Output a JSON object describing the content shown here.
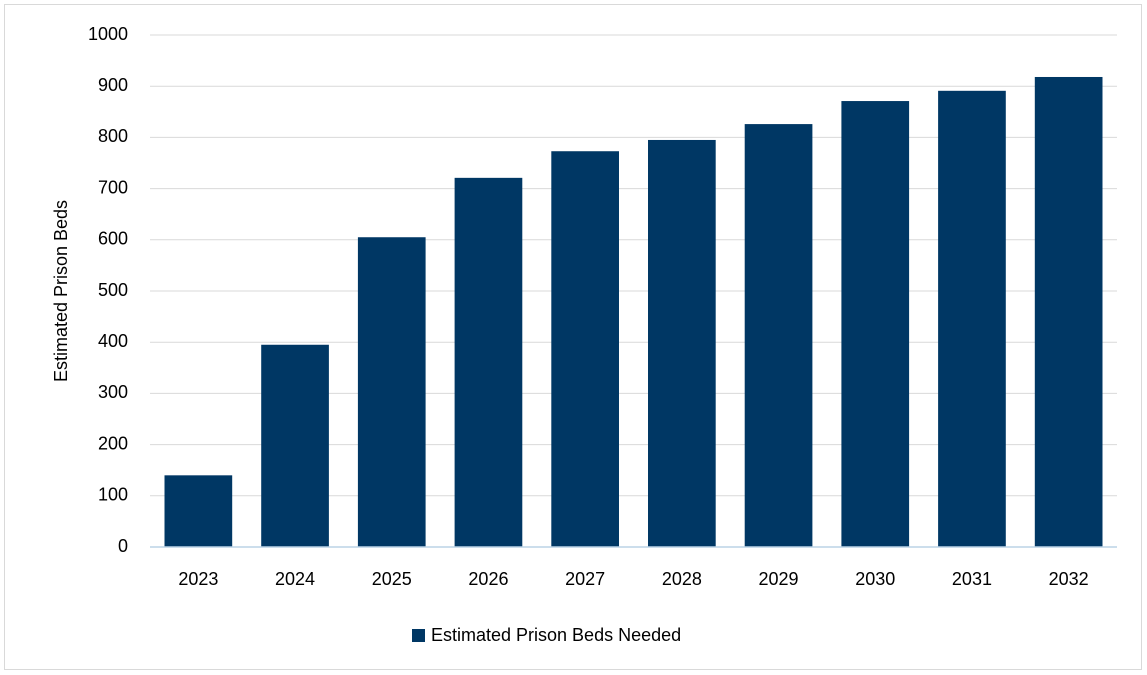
{
  "chart_data": {
    "type": "bar",
    "y_label": "Estimated Prison Beds",
    "categories": [
      "2023",
      "2024",
      "2025",
      "2026",
      "2027",
      "2028",
      "2029",
      "2030",
      "2031",
      "2032"
    ],
    "series": [
      {
        "name": "Estimated Prison Beds Needed",
        "color": "#003764",
        "values": [
          140,
          395,
          605,
          721,
          773,
          795,
          826,
          871,
          891,
          918
        ]
      }
    ],
    "ylim": [
      0,
      1000
    ],
    "yticks": [
      0,
      100,
      200,
      300,
      400,
      500,
      600,
      700,
      800,
      900,
      1000
    ],
    "grid": true
  }
}
